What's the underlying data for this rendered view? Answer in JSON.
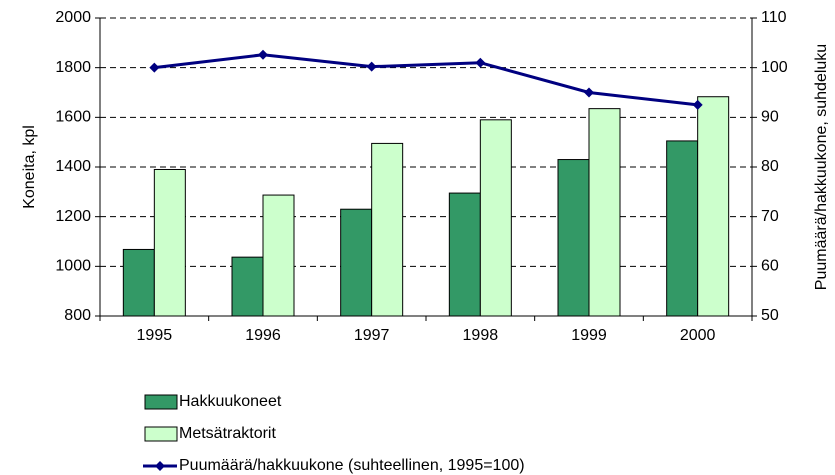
{
  "chart_data": {
    "type": "bar",
    "categories": [
      "1995",
      "1996",
      "1997",
      "1998",
      "1999",
      "2000"
    ],
    "series": [
      {
        "name": "Hakkuukoneet",
        "color": "#339966",
        "values": [
          1068,
          1037,
          1230,
          1295,
          1430,
          1505
        ]
      },
      {
        "name": "Metsätraktorit",
        "color": "#ccffcc",
        "values": [
          1390,
          1287,
          1495,
          1590,
          1635,
          1683
        ]
      },
      {
        "name": "Puumäärä/hakkuukone (suhteellinen, 1995=100)",
        "color": "#000080",
        "axis": "y2",
        "values": [
          100,
          102.6,
          100.2,
          101,
          95,
          92.5
        ]
      }
    ],
    "ylabel": "Koneita, kpl",
    "y2label": "Puumäärä/hakkuukone, suhdeluku",
    "ylim": [
      800,
      2000
    ],
    "yticks": [
      800,
      1000,
      1200,
      1400,
      1600,
      1800,
      2000
    ],
    "y2lim": [
      50,
      110
    ],
    "y2ticks": [
      50,
      60,
      70,
      80,
      90,
      100,
      110
    ],
    "grid": true
  }
}
